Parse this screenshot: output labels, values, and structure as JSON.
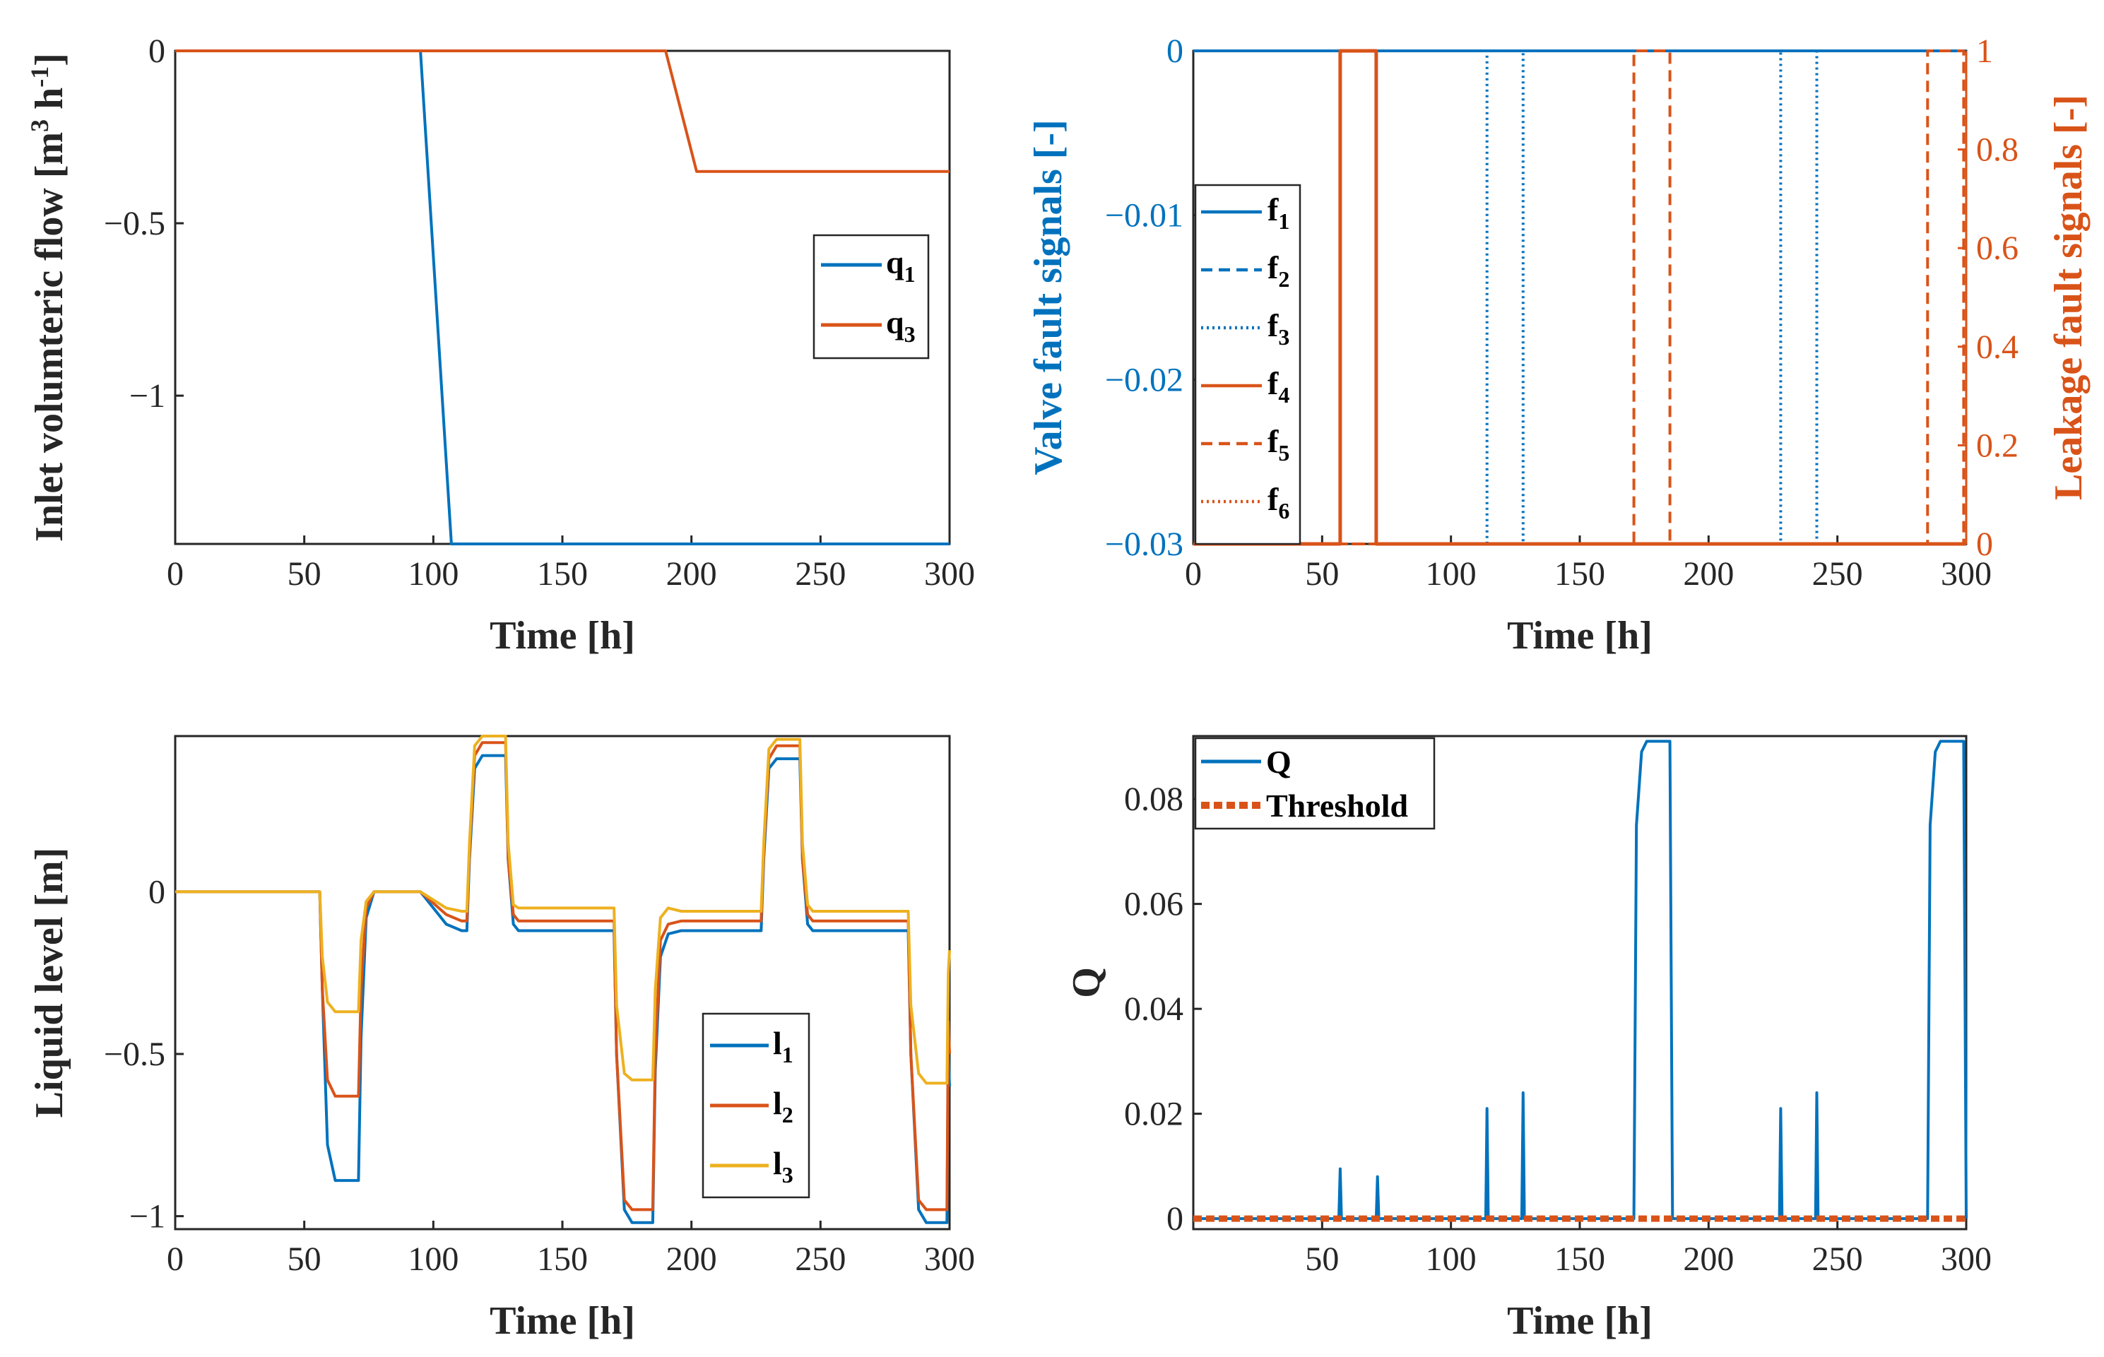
{
  "colors": {
    "blue": "#0072BD",
    "orange": "#D95319",
    "yellow": "#EDB120",
    "axis": "#262626"
  },
  "chart_data": [
    {
      "id": "flow",
      "type": "line",
      "xlabel": "Time [h]",
      "ylabel": "Inlet volumteric flow [m",
      "ylabel_sup1": "3",
      "ylabel_mid": " h",
      "ylabel_sup2": "-1",
      "ylabel_end": "]",
      "xlim": [
        0,
        300
      ],
      "ylim": [
        -1.43,
        0
      ],
      "xticks": [
        0,
        50,
        100,
        150,
        200,
        250,
        300
      ],
      "xtick_labels": [
        "0",
        "50",
        "100",
        "150",
        "200",
        "250",
        "300"
      ],
      "yticks": [
        -1,
        -0.5,
        0
      ],
      "ytick_labels": [
        "−1",
        "−0.5",
        "0"
      ],
      "legend": {
        "position": "center-right"
      },
      "series": [
        {
          "name": "q",
          "sub": "1",
          "color": "blue",
          "style": "solid",
          "points": [
            [
              0,
              0
            ],
            [
              95,
              0
            ],
            [
              107,
              -1.43
            ],
            [
              300,
              -1.43
            ]
          ]
        },
        {
          "name": "q",
          "sub": "3",
          "color": "orange",
          "style": "solid",
          "points": [
            [
              0,
              0
            ],
            [
              190,
              0
            ],
            [
              202,
              -0.35
            ],
            [
              300,
              -0.35
            ]
          ]
        }
      ]
    },
    {
      "id": "fault",
      "type": "line",
      "xlabel": "Time [h]",
      "ylabel": "Valve fault signals [-]",
      "ylabel_right": "Leakage fault signals [-]",
      "xlim": [
        0,
        300
      ],
      "ylim": [
        -0.03,
        0
      ],
      "ylim_right": [
        0,
        1
      ],
      "xticks": [
        0,
        50,
        100,
        150,
        200,
        250,
        300
      ],
      "xtick_labels": [
        "0",
        "50",
        "100",
        "150",
        "200",
        "250",
        "300"
      ],
      "yticks": [
        -0.03,
        -0.02,
        -0.01,
        0
      ],
      "ytick_labels": [
        "−0.03",
        "−0.02",
        "−0.01",
        "0"
      ],
      "yticks_right": [
        0,
        0.2,
        0.4,
        0.6,
        0.8,
        1
      ],
      "ytick_labels_right": [
        "0",
        "0.2",
        "0.4",
        "0.6",
        "0.8",
        "1"
      ],
      "legend": {
        "position": "left"
      },
      "series": [
        {
          "name": "f",
          "sub": "1",
          "color": "blue",
          "style": "solid",
          "axis": "left",
          "points": [
            [
              0,
              0
            ],
            [
              300,
              0
            ]
          ]
        },
        {
          "name": "f",
          "sub": "2",
          "color": "blue",
          "style": "dashed",
          "axis": "left",
          "points": []
        },
        {
          "name": "f",
          "sub": "3",
          "color": "blue",
          "style": "dotted",
          "axis": "left",
          "pulses": [
            [
              114,
              128
            ],
            [
              228,
              242
            ]
          ]
        },
        {
          "name": "f",
          "sub": "4",
          "color": "orange",
          "style": "solid",
          "axis": "right",
          "pulses": [
            [
              57,
              71
            ]
          ]
        },
        {
          "name": "f",
          "sub": "5",
          "color": "orange",
          "style": "dashed",
          "axis": "right",
          "pulses": [
            [
              171,
              185
            ],
            [
              285,
              299
            ]
          ]
        },
        {
          "name": "f",
          "sub": "6",
          "color": "orange",
          "style": "dotted",
          "axis": "right",
          "points": [
            [
              0,
              0
            ],
            [
              300,
              0
            ]
          ]
        }
      ]
    },
    {
      "id": "level",
      "type": "line",
      "xlabel": "Time [h]",
      "ylabel": "Liquid level [m]",
      "xlim": [
        0,
        300
      ],
      "ylim": [
        -1.04,
        0.48
      ],
      "xticks": [
        0,
        50,
        100,
        150,
        200,
        250,
        300
      ],
      "xtick_labels": [
        "0",
        "50",
        "100",
        "150",
        "200",
        "250",
        "300"
      ],
      "yticks": [
        -1,
        -0.5,
        0
      ],
      "ytick_labels": [
        "−1",
        "−0.5",
        "0"
      ],
      "legend": {
        "position": "bottom-center"
      },
      "series": [
        {
          "name": "l",
          "sub": "1",
          "color": "blue",
          "style": "solid",
          "points": [
            [
              0,
              0
            ],
            [
              56,
              0
            ],
            [
              57,
              -0.3
            ],
            [
              59,
              -0.78
            ],
            [
              62,
              -0.89
            ],
            [
              71,
              -0.89
            ],
            [
              72,
              -0.45
            ],
            [
              74,
              -0.08
            ],
            [
              77,
              0
            ],
            [
              95,
              0
            ],
            [
              105,
              -0.1
            ],
            [
              111,
              -0.12
            ],
            [
              113,
              -0.12
            ],
            [
              114,
              0.1
            ],
            [
              116,
              0.38
            ],
            [
              119,
              0.42
            ],
            [
              128,
              0.42
            ],
            [
              129,
              0.1
            ],
            [
              131,
              -0.1
            ],
            [
              133,
              -0.12
            ],
            [
              170,
              -0.12
            ],
            [
              171,
              -0.5
            ],
            [
              174,
              -0.98
            ],
            [
              177,
              -1.02
            ],
            [
              185,
              -1.02
            ],
            [
              186,
              -0.55
            ],
            [
              188,
              -0.2
            ],
            [
              191,
              -0.13
            ],
            [
              196,
              -0.12
            ],
            [
              227,
              -0.12
            ],
            [
              228,
              0.1
            ],
            [
              230,
              0.38
            ],
            [
              233,
              0.41
            ],
            [
              242,
              0.41
            ],
            [
              243,
              0.1
            ],
            [
              245,
              -0.1
            ],
            [
              247,
              -0.12
            ],
            [
              284,
              -0.12
            ],
            [
              285,
              -0.5
            ],
            [
              288,
              -0.98
            ],
            [
              291,
              -1.02
            ],
            [
              299,
              -1.02
            ],
            [
              299.5,
              -0.5
            ],
            [
              300,
              -0.6
            ]
          ]
        },
        {
          "name": "l",
          "sub": "2",
          "color": "orange",
          "style": "solid",
          "points": [
            [
              0,
              0
            ],
            [
              56,
              0
            ],
            [
              57,
              -0.3
            ],
            [
              59,
              -0.58
            ],
            [
              62,
              -0.63
            ],
            [
              71,
              -0.63
            ],
            [
              72,
              -0.3
            ],
            [
              74,
              -0.05
            ],
            [
              77,
              0
            ],
            [
              95,
              0
            ],
            [
              105,
              -0.07
            ],
            [
              111,
              -0.09
            ],
            [
              113,
              -0.09
            ],
            [
              114,
              0.12
            ],
            [
              116,
              0.42
            ],
            [
              119,
              0.46
            ],
            [
              128,
              0.46
            ],
            [
              129,
              0.1
            ],
            [
              131,
              -0.07
            ],
            [
              133,
              -0.09
            ],
            [
              170,
              -0.09
            ],
            [
              171,
              -0.5
            ],
            [
              174,
              -0.95
            ],
            [
              177,
              -0.98
            ],
            [
              185,
              -0.98
            ],
            [
              186,
              -0.5
            ],
            [
              188,
              -0.15
            ],
            [
              191,
              -0.1
            ],
            [
              196,
              -0.09
            ],
            [
              227,
              -0.09
            ],
            [
              228,
              0.12
            ],
            [
              230,
              0.41
            ],
            [
              233,
              0.45
            ],
            [
              242,
              0.45
            ],
            [
              243,
              0.1
            ],
            [
              245,
              -0.07
            ],
            [
              247,
              -0.09
            ],
            [
              284,
              -0.09
            ],
            [
              285,
              -0.5
            ],
            [
              288,
              -0.95
            ],
            [
              291,
              -0.98
            ],
            [
              299,
              -0.98
            ],
            [
              299.5,
              -0.4
            ],
            [
              300,
              -0.5
            ]
          ]
        },
        {
          "name": "l",
          "sub": "3",
          "color": "yellow",
          "style": "solid",
          "points": [
            [
              0,
              0
            ],
            [
              56,
              0
            ],
            [
              57,
              -0.2
            ],
            [
              59,
              -0.34
            ],
            [
              62,
              -0.37
            ],
            [
              71,
              -0.37
            ],
            [
              72,
              -0.15
            ],
            [
              74,
              -0.03
            ],
            [
              77,
              0
            ],
            [
              95,
              0
            ],
            [
              105,
              -0.05
            ],
            [
              111,
              -0.06
            ],
            [
              113,
              -0.06
            ],
            [
              114,
              0.15
            ],
            [
              116,
              0.45
            ],
            [
              119,
              0.48
            ],
            [
              128,
              0.48
            ],
            [
              129,
              0.15
            ],
            [
              131,
              -0.04
            ],
            [
              133,
              -0.05
            ],
            [
              170,
              -0.05
            ],
            [
              171,
              -0.35
            ],
            [
              174,
              -0.56
            ],
            [
              177,
              -0.58
            ],
            [
              185,
              -0.58
            ],
            [
              186,
              -0.3
            ],
            [
              188,
              -0.08
            ],
            [
              191,
              -0.05
            ],
            [
              196,
              -0.06
            ],
            [
              227,
              -0.06
            ],
            [
              228,
              0.15
            ],
            [
              230,
              0.44
            ],
            [
              233,
              0.47
            ],
            [
              242,
              0.47
            ],
            [
              243,
              0.15
            ],
            [
              245,
              -0.04
            ],
            [
              247,
              -0.06
            ],
            [
              284,
              -0.06
            ],
            [
              285,
              -0.35
            ],
            [
              288,
              -0.56
            ],
            [
              291,
              -0.59
            ],
            [
              299,
              -0.59
            ],
            [
              299.5,
              -0.25
            ],
            [
              300,
              -0.18
            ]
          ]
        }
      ]
    },
    {
      "id": "q",
      "type": "line",
      "xlabel": "Time [h]",
      "ylabel": "Q",
      "xlim": [
        0,
        300
      ],
      "ylim": [
        -0.002,
        0.092
      ],
      "xticks": [
        50,
        100,
        150,
        200,
        250,
        300
      ],
      "xtick_labels": [
        "50",
        "100",
        "150",
        "200",
        "250",
        "300"
      ],
      "yticks": [
        0,
        0.02,
        0.04,
        0.06,
        0.08
      ],
      "ytick_labels": [
        "0",
        "0.02",
        "0.04",
        "0.06",
        "0.08"
      ],
      "legend": {
        "position": "top-left"
      },
      "series": [
        {
          "name": "Q",
          "color": "blue",
          "style": "solid",
          "points": [
            [
              0,
              0
            ],
            [
              56.5,
              0
            ],
            [
              57,
              0.0095
            ],
            [
              57.5,
              0
            ],
            [
              71,
              0
            ],
            [
              71.5,
              0.008
            ],
            [
              72,
              0
            ],
            [
              113.5,
              0
            ],
            [
              114,
              0.021
            ],
            [
              114.5,
              0
            ],
            [
              127.5,
              0
            ],
            [
              128,
              0.024
            ],
            [
              128.5,
              0
            ],
            [
              171,
              0
            ],
            [
              172,
              0.075
            ],
            [
              174,
              0.089
            ],
            [
              176,
              0.091
            ],
            [
              184,
              0.091
            ],
            [
              185,
              0.091
            ],
            [
              186,
              0
            ],
            [
              227.5,
              0
            ],
            [
              228,
              0.021
            ],
            [
              228.5,
              0
            ],
            [
              241.5,
              0
            ],
            [
              242,
              0.024
            ],
            [
              242.5,
              0
            ],
            [
              285,
              0
            ],
            [
              286,
              0.075
            ],
            [
              288,
              0.089
            ],
            [
              290,
              0.091
            ],
            [
              298,
              0.091
            ],
            [
              299,
              0.091
            ],
            [
              300,
              0
            ]
          ]
        },
        {
          "name": "Threshold",
          "color": "orange",
          "style": "thickdash",
          "points": [
            [
              0,
              0
            ],
            [
              300,
              0
            ]
          ]
        }
      ]
    }
  ]
}
